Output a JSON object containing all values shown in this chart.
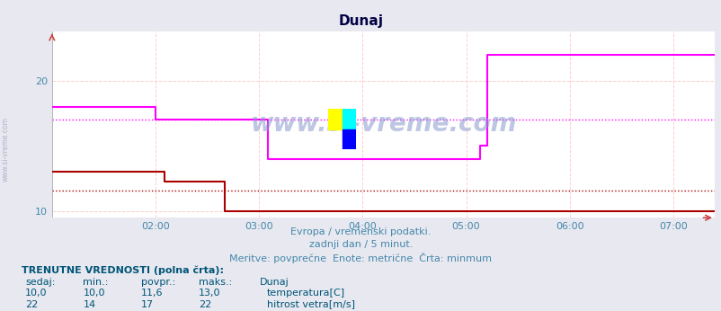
{
  "title": "Dunaj",
  "bg_color": "#e8e8f0",
  "plot_bg_color": "#ffffff",
  "grid_color_h": "#ffcccc",
  "grid_color_v": "#ffcccc",
  "title_color": "#000044",
  "footer_color": "#4488aa",
  "temp_color": "#aa0000",
  "wind_color": "#ff00ff",
  "avg_temp_color": "#aa0000",
  "avg_wind_color": "#ff00ff",
  "ylim": [
    9.5,
    23.8
  ],
  "yticks": [
    10,
    20
  ],
  "xlim": [
    0,
    384
  ],
  "xtick_positions": [
    60,
    120,
    180,
    240,
    300,
    360
  ],
  "xtick_labels": [
    "02:00",
    "03:00",
    "04:00",
    "05:00",
    "06:00",
    "07:00"
  ],
  "watermark": "www.si-vreme.com",
  "sidebar_text": "www.si-vreme.com",
  "footer_line1": "Evropa / vremenski podatki.",
  "footer_line2": "zadnji dan / 5 minut.",
  "footer_line3": "Meritve: povprečne  Enote: metrične  Črta: minmum",
  "avg_temp": 11.6,
  "avg_wind": 17.0,
  "temp_x": [
    0,
    65,
    65,
    100,
    100,
    384
  ],
  "temp_y": [
    13.0,
    13.0,
    12.3,
    12.3,
    10.0,
    10.0
  ],
  "wind_x": [
    0,
    60,
    60,
    125,
    125,
    248,
    248,
    252,
    252,
    384
  ],
  "wind_y": [
    18.0,
    18.0,
    17.0,
    17.0,
    14.0,
    14.0,
    15.0,
    15.0,
    22.0,
    22.0
  ],
  "text_labels": {
    "header": "TRENUTNE VREDNOSTI (polna črta):",
    "cols": [
      "sedaj:",
      "min.:",
      "povpr.:",
      "maks.:",
      "Dunaj"
    ],
    "temp_row": [
      "10,0",
      "10,0",
      "11,6",
      "13,0",
      "temperatura[C]"
    ],
    "wind_row": [
      "22",
      "14",
      "17",
      "22",
      "hitrost vetra[m/s]"
    ]
  }
}
